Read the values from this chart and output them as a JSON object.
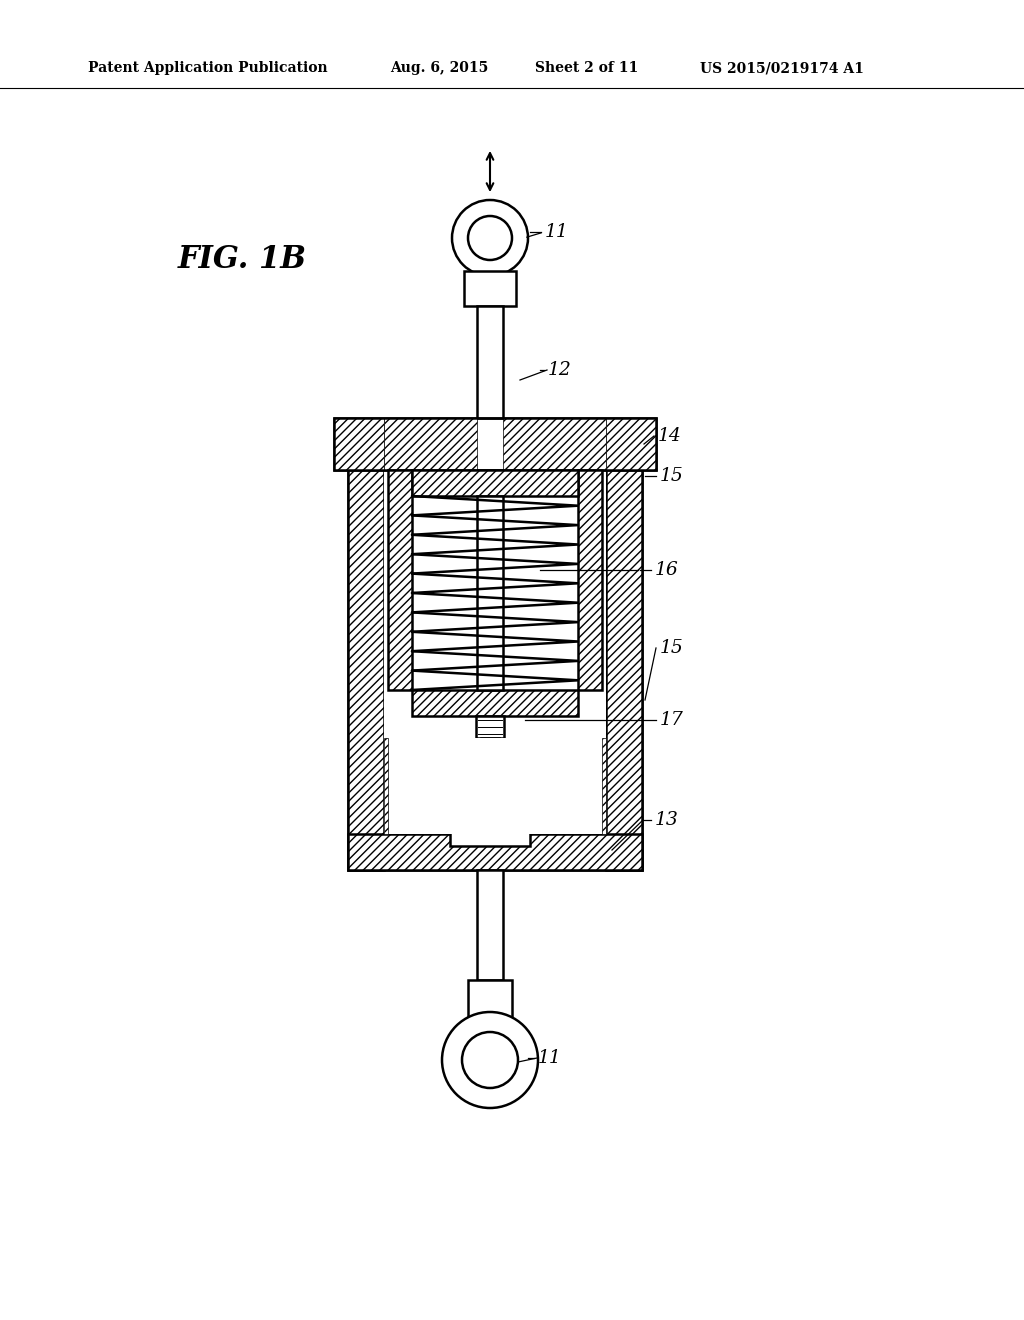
{
  "bg_color": "#ffffff",
  "line_color": "#000000",
  "header_text": "Patent Application Publication",
  "header_date": "Aug. 6, 2015",
  "header_sheet": "Sheet 2 of 11",
  "header_patent": "US 2015/0219174 A1",
  "fig_label": "FIG. 1B"
}
